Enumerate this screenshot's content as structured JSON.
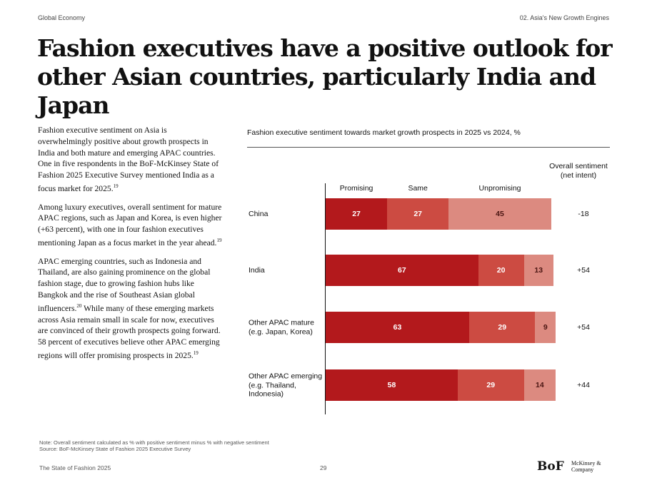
{
  "header": {
    "left": "Global Economy",
    "right": "02. Asia's New Growth Engines"
  },
  "title": "Fashion executives have a positive outlook for other Asian countries, particularly India and Japan",
  "body": {
    "p1": "Fashion executive sentiment on Asia is overwhelmingly positive about growth prospects in India and both mature and emerging APAC countries. One in five respondents in the BoF-McKinsey State of Fashion 2025 Executive Survey mentioned India as a focus market for 2025.",
    "p1_sup": "19",
    "p2": "Among luxury executives, overall sentiment for mature APAC regions, such as Japan and Korea, is even higher (+63 percent), with one in four fashion executives mentioning Japan as a focus market in the year ahead.",
    "p2_sup": "19",
    "p3a": "APAC emerging countries, such as Indonesia and Thailand, are also gaining prominence on the global fashion stage, due to growing fashion hubs like Bangkok and the rise of Southeast Asian global influencers.",
    "p3a_sup": "20",
    "p3b": " While many of these emerging markets across Asia remain small in scale for now, executives are convinced of their growth prospects going forward. 58 percent of executives believe other APAC emerging regions will offer promising prospects in 2025.",
    "p3b_sup": "19"
  },
  "chart_data": {
    "type": "bar",
    "orientation": "horizontal",
    "stacked": true,
    "title": "Fashion executive sentiment towards market growth prospects in 2025 vs 2024, %",
    "net_header": "Overall sentiment (net intent)",
    "categories": [
      "China",
      "India",
      "Other APAC mature (e.g. Japan, Korea)",
      "Other APAC emerging (e.g. Thailand, Indonesia)"
    ],
    "series": [
      {
        "name": "Promising",
        "color": "#b3191c",
        "values": [
          27,
          67,
          63,
          58
        ]
      },
      {
        "name": "Same",
        "color": "#cc4b42",
        "values": [
          27,
          20,
          29,
          29
        ]
      },
      {
        "name": "Unpromising",
        "color": "#dc8a80",
        "values": [
          45,
          13,
          9,
          14
        ]
      }
    ],
    "net": [
      "-18",
      "+54",
      "+54",
      "+44"
    ],
    "xlim": [
      0,
      100
    ]
  },
  "note": "Note: Overall sentiment calculated as % with positive sentiment minus % with negative sentiment",
  "source": "Source: BoF-McKinsey State of Fashion 2025 Executive Survey",
  "footer": {
    "left": "The State of Fashion 2025",
    "page": "29",
    "logo": "BoF",
    "partner": "McKinsey & Company"
  }
}
